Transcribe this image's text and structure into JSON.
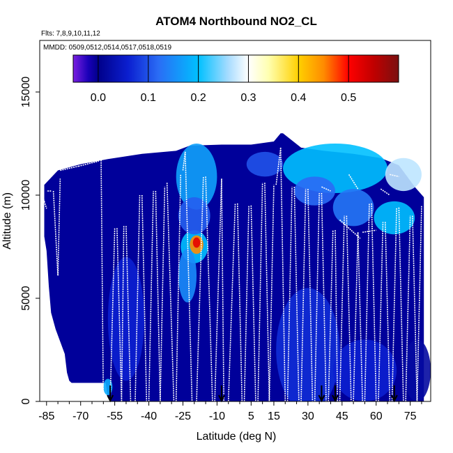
{
  "chart_data": {
    "type": "heatmap",
    "title": "ATOM4 Northbound NO2_CL",
    "annotations": {
      "flights": "Flts: 7,8,9,10,11,12",
      "dates": "MMDD: 0509,0512,0514,0517,0518,0519"
    },
    "xlabel": "Latitude (deg N)",
    "ylabel": "Altitude (m)",
    "xlim": [
      -88,
      84
    ],
    "ylim": [
      0,
      17500
    ],
    "x_ticks": [
      -85,
      -70,
      -55,
      -40,
      -25,
      -10,
      5,
      15,
      30,
      45,
      60,
      75
    ],
    "y_ticks": [
      0,
      5000,
      10000,
      15000
    ],
    "colorbar": {
      "range": [
        -0.05,
        0.6
      ],
      "ticks": [
        0.0,
        0.1,
        0.2,
        0.3,
        0.4,
        0.5
      ],
      "tick_labels": [
        "0.0",
        "0.1",
        "0.2",
        "0.3",
        "0.4",
        "0.5"
      ],
      "stops": [
        {
          "v": -0.05,
          "c": "#7a1fe0"
        },
        {
          "v": -0.02,
          "c": "#1a00b8"
        },
        {
          "v": 0.0,
          "c": "#00008a"
        },
        {
          "v": 0.06,
          "c": "#0b1fd0"
        },
        {
          "v": 0.12,
          "c": "#2a6cf5"
        },
        {
          "v": 0.2,
          "c": "#00c0ff"
        },
        {
          "v": 0.26,
          "c": "#a8dcff"
        },
        {
          "v": 0.3,
          "c": "#ffffff"
        },
        {
          "v": 0.34,
          "c": "#ffffb0"
        },
        {
          "v": 0.4,
          "c": "#ffd000"
        },
        {
          "v": 0.45,
          "c": "#ff8c00"
        },
        {
          "v": 0.5,
          "c": "#ff0000"
        },
        {
          "v": 0.55,
          "c": "#c00000"
        },
        {
          "v": 0.6,
          "c": "#7a1010"
        }
      ]
    },
    "top_boundary": [
      {
        "x": -86,
        "y": 10500
      },
      {
        "x": -80,
        "y": 11200
      },
      {
        "x": -70,
        "y": 11500
      },
      {
        "x": -58,
        "y": 11750
      },
      {
        "x": -43,
        "y": 12000
      },
      {
        "x": -28,
        "y": 12150
      },
      {
        "x": -22,
        "y": 12400
      },
      {
        "x": -8,
        "y": 12450
      },
      {
        "x": 5,
        "y": 12450
      },
      {
        "x": 15,
        "y": 12600
      },
      {
        "x": 18,
        "y": 13000
      },
      {
        "x": 19,
        "y": 13000
      },
      {
        "x": 27,
        "y": 12300
      },
      {
        "x": 37,
        "y": 12150
      },
      {
        "x": 50,
        "y": 12000
      },
      {
        "x": 62,
        "y": 11800
      },
      {
        "x": 70,
        "y": 11450
      },
      {
        "x": 77,
        "y": 10400
      },
      {
        "x": 81,
        "y": 9900
      }
    ],
    "bottom_boundary": [
      {
        "x": -86,
        "y": 8000
      },
      {
        "x": -85,
        "y": 7300
      },
      {
        "x": -84,
        "y": 5600
      },
      {
        "x": -83,
        "y": 4300
      },
      {
        "x": -81,
        "y": 3500
      },
      {
        "x": -79,
        "y": 2900
      },
      {
        "x": -77,
        "y": 2300
      },
      {
        "x": -76,
        "y": 1400
      },
      {
        "x": -75,
        "y": 1000
      },
      {
        "x": -74,
        "y": 900
      },
      {
        "x": -59,
        "y": 900
      },
      {
        "x": -58,
        "y": 200
      },
      {
        "x": -57,
        "y": 0
      },
      {
        "x": 81,
        "y": 0
      }
    ],
    "hotspots": [
      {
        "x": -20,
        "y": 7500,
        "rx": 6,
        "ry": 800,
        "v": 0.2
      },
      {
        "x": -19,
        "y": 7600,
        "rx": 3,
        "ry": 450,
        "v": 0.45
      },
      {
        "x": -19,
        "y": 7700,
        "rx": 1.6,
        "ry": 250,
        "v": 0.52
      },
      {
        "x": -23,
        "y": 6100,
        "rx": 4,
        "ry": 1300,
        "v": 0.15
      },
      {
        "x": -19,
        "y": 10900,
        "rx": 9,
        "ry": 1600,
        "v": 0.17
      },
      {
        "x": 42,
        "y": 11300,
        "rx": 23,
        "ry": 1200,
        "v": 0.2
      },
      {
        "x": 72,
        "y": 11000,
        "rx": 8,
        "ry": 800,
        "v": 0.27
      },
      {
        "x": 68,
        "y": 8900,
        "rx": 9,
        "ry": 800,
        "v": 0.2
      },
      {
        "x": 50,
        "y": 9400,
        "rx": 9,
        "ry": 900,
        "v": 0.13
      },
      {
        "x": 33,
        "y": 10200,
        "rx": 9,
        "ry": 700,
        "v": 0.12
      },
      {
        "x": 11,
        "y": 11500,
        "rx": 8,
        "ry": 600,
        "v": 0.1
      },
      {
        "x": -20,
        "y": 9000,
        "rx": 7,
        "ry": 900,
        "v": 0.11
      },
      {
        "x": 30,
        "y": 2500,
        "rx": 14,
        "ry": 3000,
        "v": 0.07
      },
      {
        "x": -50,
        "y": 4000,
        "rx": 8,
        "ry": 3000,
        "v": 0.06
      },
      {
        "x": 55,
        "y": 1500,
        "rx": 14,
        "ry": 1500,
        "v": 0.06
      },
      {
        "x": -58,
        "y": 700,
        "rx": 2,
        "ry": 400,
        "v": 0.18
      },
      {
        "x": 78,
        "y": 1500,
        "rx": 6,
        "ry": 1500,
        "v": 0.02
      }
    ],
    "profiles": [
      {
        "x1": -87,
        "y1": 10150,
        "x2": -86,
        "y2": 9700
      },
      {
        "x1": -86,
        "y1": 9700,
        "x2": -85,
        "y2": 9350
      },
      {
        "x1": -83,
        "y1": 10200,
        "x2": -85,
        "y2": 10200
      },
      {
        "x1": -82,
        "y1": 10200,
        "x2": -80,
        "y2": 6100
      },
      {
        "x1": -80,
        "y1": 6100,
        "x2": -79,
        "y2": 10800
      },
      {
        "x1": -79,
        "y1": 11200,
        "x2": -71,
        "y2": 11400
      },
      {
        "x1": -71,
        "y1": 11400,
        "x2": -62,
        "y2": 11650
      },
      {
        "x1": -61,
        "y1": 11700,
        "x2": -60,
        "y2": 0
      },
      {
        "x1": -57,
        "y1": 0,
        "x2": -55,
        "y2": 8400
      },
      {
        "x1": -54,
        "y1": 8400,
        "x2": -52,
        "y2": 0
      },
      {
        "x1": -52,
        "y1": 0,
        "x2": -51,
        "y2": 8500
      },
      {
        "x1": -50,
        "y1": 8500,
        "x2": -48,
        "y2": 0
      },
      {
        "x1": -46,
        "y1": 0,
        "x2": -44,
        "y2": 10000
      },
      {
        "x1": -43,
        "y1": 10000,
        "x2": -41,
        "y2": 0
      },
      {
        "x1": -40,
        "y1": 0,
        "x2": -38,
        "y2": 10200
      },
      {
        "x1": -37,
        "y1": 10200,
        "x2": -35,
        "y2": 0
      },
      {
        "x1": -35,
        "y1": 0,
        "x2": -33,
        "y2": 10400
      },
      {
        "x1": -32,
        "y1": 10600,
        "x2": -29,
        "y2": 0
      },
      {
        "x1": -28,
        "y1": 0,
        "x2": -26,
        "y2": 11000
      },
      {
        "x1": -25,
        "y1": 11200,
        "x2": -24,
        "y2": 12100
      },
      {
        "x1": -24,
        "y1": 12100,
        "x2": -21,
        "y2": 0
      },
      {
        "x1": -19,
        "y1": 0,
        "x2": -16,
        "y2": 10900
      },
      {
        "x1": -15,
        "y1": 10900,
        "x2": -12,
        "y2": 0
      },
      {
        "x1": -11,
        "y1": 0,
        "x2": -8,
        "y2": 10800
      },
      {
        "x1": -8,
        "y1": 10800,
        "x2": -7,
        "y2": 0
      },
      {
        "x1": -5,
        "y1": 0,
        "x2": -2,
        "y2": 9600
      },
      {
        "x1": -1,
        "y1": 9600,
        "x2": 1,
        "y2": 0
      },
      {
        "x1": 2,
        "y1": 0,
        "x2": 4,
        "y2": 9500
      },
      {
        "x1": 5,
        "y1": 9500,
        "x2": 7,
        "y2": 0
      },
      {
        "x1": 8,
        "y1": 0,
        "x2": 10,
        "y2": 10600
      },
      {
        "x1": 11,
        "y1": 10600,
        "x2": 13,
        "y2": 0
      },
      {
        "x1": 13,
        "y1": 0,
        "x2": 15,
        "y2": 10500
      },
      {
        "x1": 16,
        "y1": 10500,
        "x2": 18,
        "y2": 12300
      },
      {
        "x1": 18,
        "y1": 12300,
        "x2": 20,
        "y2": 0
      },
      {
        "x1": 21,
        "y1": 0,
        "x2": 23,
        "y2": 10400
      },
      {
        "x1": 24,
        "y1": 10400,
        "x2": 26,
        "y2": 0
      },
      {
        "x1": 27,
        "y1": 0,
        "x2": 29,
        "y2": 10300
      },
      {
        "x1": 30,
        "y1": 10300,
        "x2": 32,
        "y2": 0
      },
      {
        "x1": 33,
        "y1": 0,
        "x2": 35,
        "y2": 10100
      },
      {
        "x1": 36,
        "y1": 10100,
        "x2": 38,
        "y2": 0
      },
      {
        "x1": 39,
        "y1": 0,
        "x2": 41,
        "y2": 8300
      },
      {
        "x1": 42,
        "y1": 8300,
        "x2": 43,
        "y2": 0
      },
      {
        "x1": 44,
        "y1": 0,
        "x2": 46,
        "y2": 9000
      },
      {
        "x1": 47,
        "y1": 9000,
        "x2": 49,
        "y2": 0
      },
      {
        "x1": 50,
        "y1": 0,
        "x2": 52,
        "y2": 8200
      },
      {
        "x1": 52,
        "y1": 8200,
        "x2": 54,
        "y2": 0
      },
      {
        "x1": 55,
        "y1": 0,
        "x2": 57,
        "y2": 9600
      },
      {
        "x1": 58,
        "y1": 9600,
        "x2": 60,
        "y2": 0
      },
      {
        "x1": 61,
        "y1": 0,
        "x2": 63,
        "y2": 8700
      },
      {
        "x1": 64,
        "y1": 8700,
        "x2": 66,
        "y2": 0
      },
      {
        "x1": 67,
        "y1": 0,
        "x2": 69,
        "y2": 9400
      },
      {
        "x1": 70,
        "y1": 9400,
        "x2": 72,
        "y2": 0
      },
      {
        "x1": 73,
        "y1": 0,
        "x2": 75,
        "y2": 9000
      },
      {
        "x1": 76,
        "y1": 9000,
        "x2": 78,
        "y2": 0
      },
      {
        "x1": 78,
        "y1": 0,
        "x2": 80,
        "y2": 9500
      },
      {
        "x1": 44,
        "y1": 8800,
        "x2": 53,
        "y2": 7900
      },
      {
        "x1": 54,
        "y1": 8200,
        "x2": 60,
        "y2": 8300
      },
      {
        "x1": 36,
        "y1": 10400,
        "x2": 40,
        "y2": 10200
      },
      {
        "x1": 48,
        "y1": 11000,
        "x2": 52,
        "y2": 10300
      },
      {
        "x1": 62,
        "y1": 10300,
        "x2": 66,
        "y2": 10000
      },
      {
        "x1": 66,
        "y1": 11000,
        "x2": 70,
        "y2": 10900
      }
    ],
    "arrows_x": [
      -57,
      -8,
      36,
      42,
      68
    ]
  }
}
